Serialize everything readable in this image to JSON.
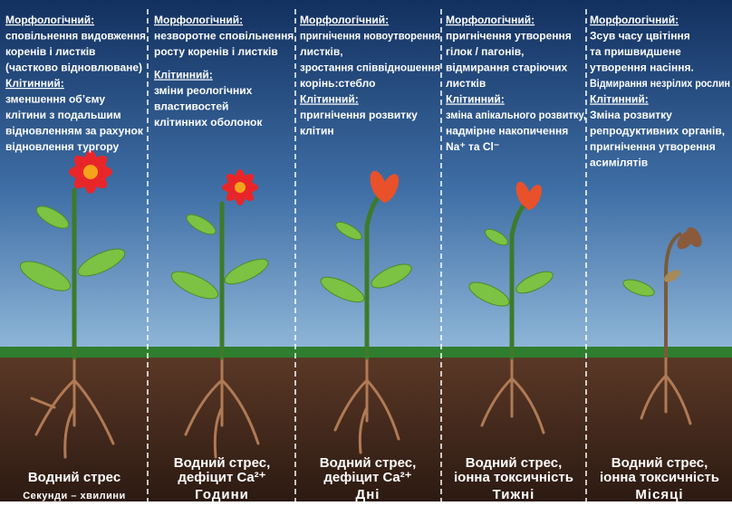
{
  "panels": [
    {
      "morph_heading": "Морфологічний:",
      "morph_lines": [
        "сповільнення видовження",
        "коренів і листків",
        "(частково відновлюване)"
      ],
      "cell_heading": "Клітинний:",
      "cell_lines": [
        "зменшення об’єму",
        "клітини з подальшим",
        "відновленням за рахунок",
        "відновлення тургору"
      ],
      "stress_lines": [
        "Водний стрес"
      ],
      "period": "Секунди – хвилини"
    },
    {
      "morph_heading": "Морфологічний:",
      "morph_lines": [
        "незворотне сповільнення",
        "росту коренів і листків"
      ],
      "cell_heading": "Клітинний:",
      "cell_lines": [
        "зміни реологічних",
        "властивостей",
        "клітинних оболонок"
      ],
      "stress_lines": [
        "Водний стрес,",
        "дефіцит Ca²⁺"
      ],
      "period": "Години"
    },
    {
      "morph_heading": "Морфологічний:",
      "morph_lines": [
        "пригнічення новоутворення",
        "листків,",
        "зростання співвідношення",
        "корінь:стебло"
      ],
      "cell_heading": "Клітинний:",
      "cell_lines": [
        "пригнічення розвитку",
        "клітин"
      ],
      "stress_lines": [
        "Водний стрес,",
        "дефіцит Ca²⁺"
      ],
      "period": "Дні"
    },
    {
      "morph_heading": "Морфологічний:",
      "morph_lines": [
        "пригнічення утворення",
        "гілок / пагонів,",
        "відмирання старіючих",
        "листків"
      ],
      "cell_heading": "Клітинний:",
      "cell_lines": [
        "зміна апікального розвитку,",
        "надмірне накопичення",
        "Na⁺ та Cl⁻"
      ],
      "stress_lines": [
        "Водний стрес,",
        "іонна токсичність"
      ],
      "period": "Тижні"
    },
    {
      "morph_heading": "Морфологічний:",
      "morph_lines": [
        "Зсув часу цвітіння",
        "та пришвидшене",
        "утворення насіння.",
        "Відмирання незрілих рослин"
      ],
      "cell_heading": "Клітинний:",
      "cell_lines": [
        "Зміна розвитку",
        "репродуктивних органів,",
        "пригнічення утворення",
        "асимілятів"
      ],
      "stress_lines": [
        "Водний стрес,",
        "іонна токсичність"
      ],
      "period": "Місяці"
    }
  ]
}
